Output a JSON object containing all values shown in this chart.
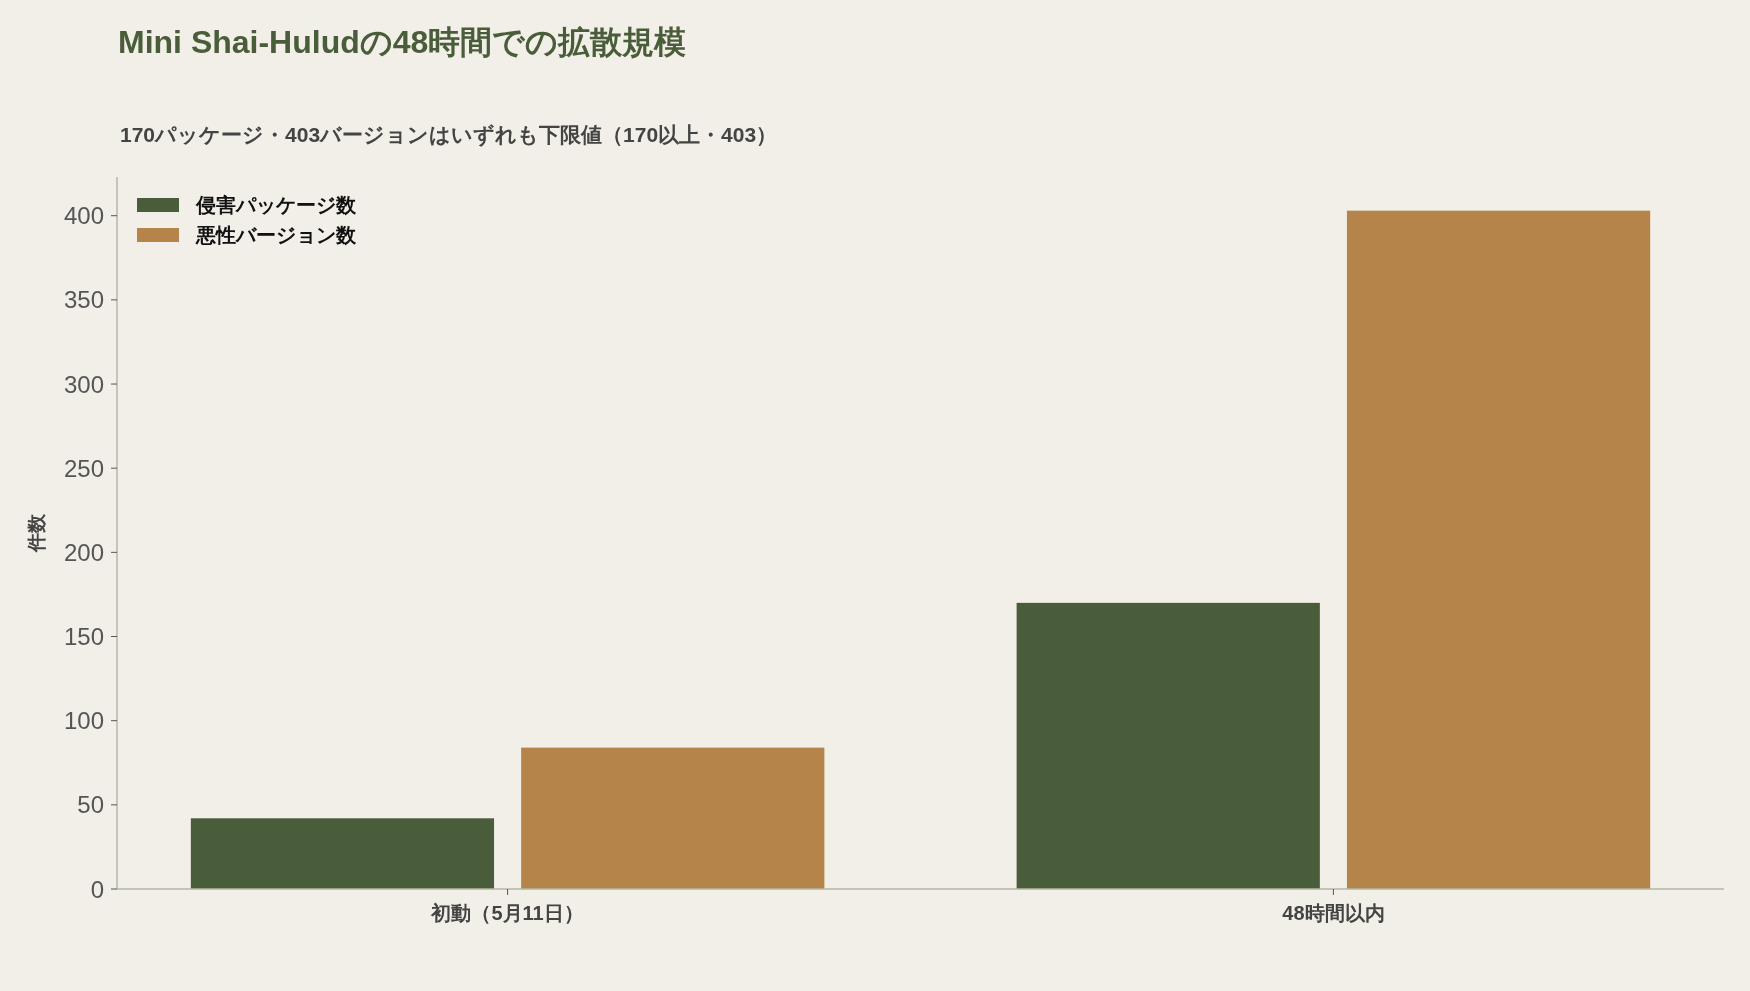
{
  "chart_data": {
    "type": "bar",
    "title": "Mini Shai-Huludの48時間での拡散規模",
    "subtitle": "170パッケージ・403バージョンはいずれも下限値（170以上・403）",
    "ylabel": "件数",
    "categories": [
      "初動（5月11日）",
      "48時間以内"
    ],
    "series": [
      {
        "name": "侵害パッケージ数",
        "color": "#4a5d3a",
        "values": [
          42,
          170
        ]
      },
      {
        "name": "悪性バージョン数",
        "color": "#b5844a",
        "values": [
          84,
          403
        ]
      }
    ],
    "ylim": [
      0,
      423
    ],
    "yticks": [
      0,
      50,
      100,
      150,
      200,
      250,
      300,
      350,
      400
    ],
    "legend": "top left"
  }
}
